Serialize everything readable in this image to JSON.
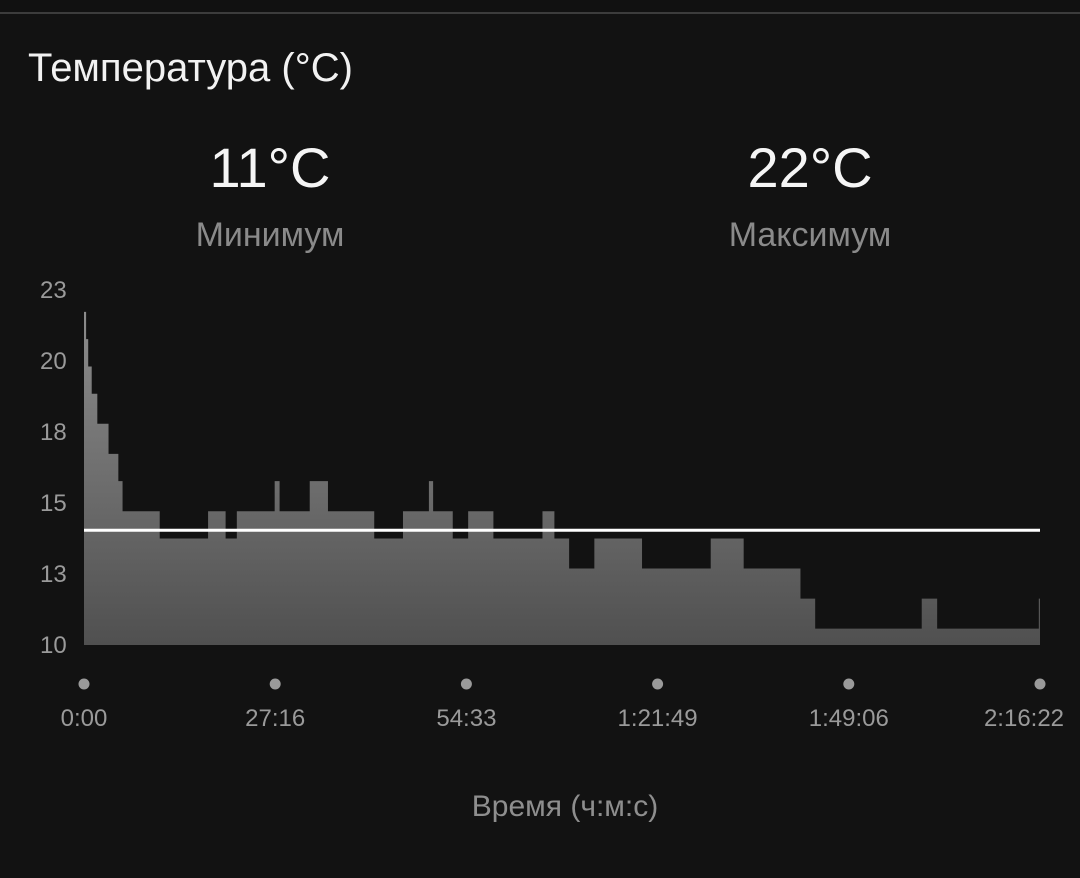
{
  "card": {
    "title": "Температура (°C)"
  },
  "stats": {
    "min": {
      "value": "11°C",
      "label": "Минимум"
    },
    "max": {
      "value": "22°C",
      "label": "Максимум"
    }
  },
  "chart_data": {
    "type": "area",
    "title": "Температура (°C)",
    "xlabel": "Время (ч:м:с)",
    "ylabel": "",
    "yticks": [
      "23",
      "20",
      "18",
      "15",
      "13",
      "10"
    ],
    "xticks": [
      "0:00",
      "27:16",
      "54:33",
      "1:21:49",
      "1:49:06",
      "2:16:22"
    ],
    "x_unit": "minutes",
    "xlim": [
      0,
      136.37
    ],
    "ylim": [
      10,
      23
    ],
    "average_line": 14.2,
    "series": [
      {
        "x": [
          0,
          0.3,
          0.6,
          1.1,
          1.9,
          3.5,
          4.9,
          5.5,
          6.6,
          10.8,
          17.7,
          20.2,
          21.8,
          27.2,
          27.9,
          32.2,
          34.8,
          41.4,
          45.5,
          49.2,
          49.8,
          52.6,
          54.8,
          58.4,
          65.4,
          67.1,
          69.2,
          72.8,
          76.4,
          79.6,
          89.4,
          94.1,
          102.2,
          104.3,
          106.2,
          107.6,
          119.5,
          121.7,
          136.0,
          136.2
        ],
        "values": [
          22.2,
          21.2,
          20.2,
          19.2,
          18.1,
          17.0,
          16.0,
          14.9,
          14.9,
          13.9,
          14.9,
          13.9,
          14.9,
          16.0,
          14.9,
          16.0,
          14.9,
          13.9,
          14.9,
          16.0,
          14.9,
          13.9,
          14.9,
          13.9,
          14.9,
          13.9,
          12.8,
          13.9,
          13.9,
          12.8,
          13.9,
          12.8,
          11.7,
          10.6,
          10.6,
          10.6,
          11.7,
          10.6,
          10.6,
          11.7
        ]
      }
    ],
    "grid": false,
    "legend": "none",
    "colors": {
      "area_top": "#8c8c8c",
      "area_bottom": "#505050",
      "average": "#ffffff",
      "ticks": "#9a9a9a"
    }
  }
}
